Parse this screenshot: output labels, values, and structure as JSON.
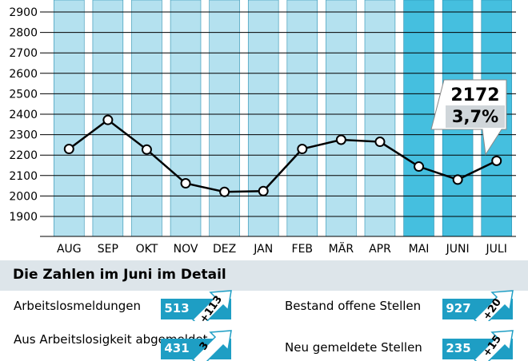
{
  "chart_data": {
    "type": "line",
    "categories": [
      "AUG",
      "SEP",
      "OKT",
      "NOV",
      "DEZ",
      "JAN",
      "FEB",
      "MÄR",
      "APR",
      "MAI",
      "JUNI",
      "JULI"
    ],
    "values": [
      2230,
      2372,
      2227,
      2062,
      2020,
      2024,
      2230,
      2275,
      2265,
      2144,
      2080,
      2172
    ],
    "highlighted_categories": [
      "MAI",
      "JUNI",
      "JULI"
    ],
    "y_ticks": [
      "1900",
      "2000",
      "2100",
      "2200",
      "2300",
      "2400",
      "2500",
      "2600",
      "2700",
      "2800",
      "2900"
    ],
    "ylim": [
      1800,
      2950
    ],
    "grid": true,
    "callout": {
      "value": "2172",
      "percent": "3,7%"
    },
    "colors": {
      "bar": "#b4e1ef",
      "bar_highlight": "#45bfdf",
      "line": "#000000",
      "marker_fill": "#ffffff"
    }
  },
  "detail": {
    "title": "Die Zahlen im Juni im Detail",
    "rows": [
      {
        "label": "Arbeitslosmeldungen",
        "value": "513",
        "delta": "+113"
      },
      {
        "label": "Aus Arbeitslosigkeit abgemeldet",
        "value": "431",
        "delta": "3"
      },
      {
        "label": "Bestand offene Stellen",
        "value": "927",
        "delta": "+20"
      },
      {
        "label": "Neu gemeldete Stellen",
        "value": "235",
        "delta": "+15"
      }
    ],
    "colors": {
      "header_bg": "#dde5ea",
      "badge": "#1e9ec4",
      "arrow": "#ffffff"
    }
  }
}
